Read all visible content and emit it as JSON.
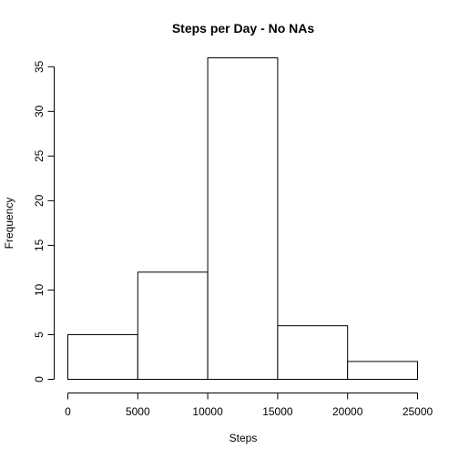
{
  "chart_data": {
    "type": "bar",
    "title": "Steps per Day - No NAs",
    "xlabel": "Steps",
    "ylabel": "Frequency",
    "bins": [
      {
        "from": 0,
        "to": 5000,
        "value": 5
      },
      {
        "from": 5000,
        "to": 10000,
        "value": 12
      },
      {
        "from": 10000,
        "to": 15000,
        "value": 36
      },
      {
        "from": 15000,
        "to": 20000,
        "value": 6
      },
      {
        "from": 20000,
        "to": 25000,
        "value": 2
      }
    ],
    "xlim": [
      0,
      25000
    ],
    "ylim": [
      0,
      36
    ],
    "x_ticks": [
      0,
      5000,
      10000,
      15000,
      20000,
      25000
    ],
    "y_ticks": [
      0,
      5,
      10,
      15,
      20,
      25,
      30,
      35
    ],
    "grid": false,
    "colors": {
      "bar_fill": "#ffffff",
      "bar_stroke": "#000000"
    }
  }
}
